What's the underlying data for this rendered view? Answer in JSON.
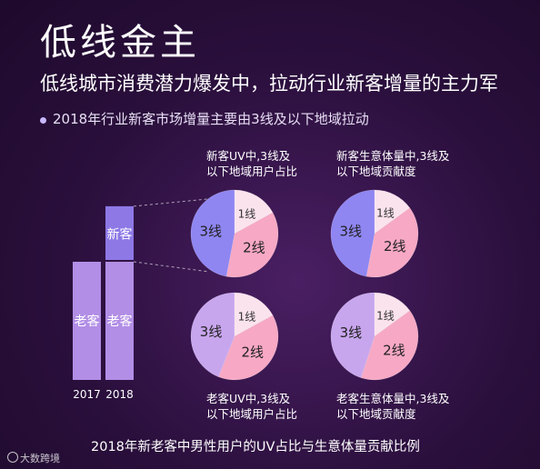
{
  "title": "低线金主",
  "subtitle": "低线城市消费潜力爆发中，拉动行业新客增量的主力军",
  "bullet": "2018年行业新客市场增量主要由3线及以下地域拉动",
  "footer": "2018年新老客中男性用户的UV占比与生意体量贡献比例",
  "watermark": "大数跨境",
  "captions": {
    "new_uv": [
      "新客UV中,3线及",
      "以下地域用户占比"
    ],
    "new_biz": [
      "新客生意体量中,3线及",
      "以下地域贡献度"
    ],
    "old_uv": [
      "老客UV中,3线及",
      "以下地域用户占比"
    ],
    "old_biz": [
      "老客生意体量中,3线及",
      "以下地域贡献度"
    ]
  },
  "colors": {
    "bg": "#2a0f3c",
    "tier1": "#fbe3ee",
    "tier2": "#f7a8c4",
    "tier3_new_uv": "#8f86f2",
    "tier3_new_biz": "#8f86f2",
    "tier3_old_uv": "#c8a6ee",
    "tier3_old_biz": "#c8a6ee",
    "bar_old": "#b28ee6",
    "bar_new": "#8d78e6"
  },
  "chart_data": [
    {
      "type": "bar",
      "stacked": true,
      "categories": [
        "2017",
        "2018"
      ],
      "series": [
        {
          "name": "老客",
          "values": [
            100,
            100
          ]
        },
        {
          "name": "新客",
          "values": [
            0,
            47
          ]
        }
      ],
      "ylim": [
        0,
        150
      ],
      "segment_labels": [
        {
          "category": "2017",
          "series": "老客",
          "text": "老客"
        },
        {
          "category": "2018",
          "series": "老客",
          "text": "老客"
        },
        {
          "category": "2018",
          "series": "新客",
          "text": "新客"
        }
      ]
    },
    {
      "type": "pie",
      "id": "new_uv",
      "labels": [
        "1线",
        "2线",
        "3线"
      ],
      "values": [
        17,
        36,
        47
      ],
      "color_keys": [
        "tier1",
        "tier2",
        "tier3_new_uv"
      ]
    },
    {
      "type": "pie",
      "id": "new_biz",
      "labels": [
        "1线",
        "2线",
        "3线"
      ],
      "values": [
        15,
        38,
        47
      ],
      "color_keys": [
        "tier1",
        "tier2",
        "tier3_new_biz"
      ]
    },
    {
      "type": "pie",
      "id": "old_uv",
      "labels": [
        "1线",
        "2线",
        "3线"
      ],
      "values": [
        17,
        39,
        44
      ],
      "color_keys": [
        "tier1",
        "tier2",
        "tier3_old_uv"
      ]
    },
    {
      "type": "pie",
      "id": "old_biz",
      "labels": [
        "1线",
        "2线",
        "3线"
      ],
      "values": [
        15,
        40,
        45
      ],
      "color_keys": [
        "tier1",
        "tier2",
        "tier3_old_biz"
      ]
    }
  ]
}
